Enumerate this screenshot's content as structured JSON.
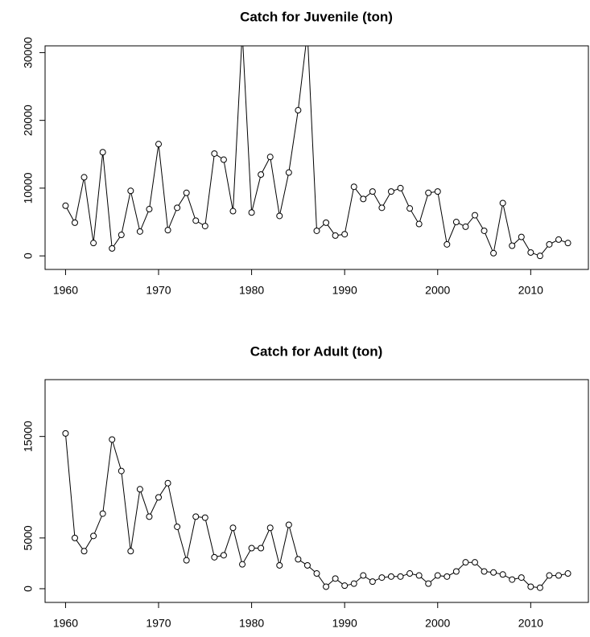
{
  "chart_data": [
    {
      "type": "line",
      "title": "Catch for Juvenile (ton)",
      "color": "#000000",
      "x": [
        1960,
        1961,
        1962,
        1963,
        1964,
        1965,
        1966,
        1967,
        1968,
        1969,
        1970,
        1971,
        1972,
        1973,
        1974,
        1975,
        1976,
        1977,
        1978,
        1979,
        1980,
        1981,
        1982,
        1983,
        1984,
        1985,
        1986,
        1987,
        1988,
        1989,
        1990,
        1991,
        1992,
        1993,
        1994,
        1995,
        1996,
        1997,
        1998,
        1999,
        2000,
        2001,
        2002,
        2003,
        2004,
        2005,
        2006,
        2007,
        2008,
        2009,
        2010,
        2011,
        2012,
        2013,
        2014
      ],
      "values": [
        7400,
        4900,
        11600,
        1900,
        15300,
        1100,
        3100,
        9600,
        3600,
        6900,
        16500,
        3800,
        7100,
        9300,
        5200,
        4400,
        15100,
        14200,
        6600,
        33000,
        6400,
        12000,
        14600,
        5900,
        12300,
        21500,
        33000,
        3700,
        4900,
        3000,
        3200,
        10200,
        8400,
        9500,
        7100,
        9500,
        10000,
        7000,
        4700,
        9300,
        9500,
        1700,
        5000,
        4300,
        6000,
        3700,
        400,
        7800,
        1500,
        2800,
        500,
        0,
        1700,
        2400,
        1900
      ],
      "xlim": [
        1957.8,
        2016.2
      ],
      "ylim": [
        -2000,
        31000
      ],
      "xticks": [
        1960,
        1970,
        1980,
        1990,
        2000,
        2010
      ],
      "yticks": [
        0,
        10000,
        20000,
        30000
      ]
    },
    {
      "type": "line",
      "title": "Catch for Adult (ton)",
      "color": "#000000",
      "x": [
        1960,
        1961,
        1962,
        1963,
        1964,
        1965,
        1966,
        1967,
        1968,
        1969,
        1970,
        1971,
        1972,
        1973,
        1974,
        1975,
        1976,
        1977,
        1978,
        1979,
        1980,
        1981,
        1982,
        1983,
        1984,
        1985,
        1986,
        1987,
        1988,
        1989,
        1990,
        1991,
        1992,
        1993,
        1994,
        1995,
        1996,
        1997,
        1998,
        1999,
        2000,
        2001,
        2002,
        2003,
        2004,
        2005,
        2006,
        2007,
        2008,
        2009,
        2010,
        2011,
        2012,
        2013,
        2014
      ],
      "values": [
        15300,
        5000,
        3700,
        5200,
        7400,
        14700,
        11600,
        3700,
        9800,
        7100,
        9000,
        10400,
        6100,
        2800,
        7100,
        7000,
        3100,
        3300,
        6000,
        2400,
        4000,
        4000,
        6000,
        2300,
        6300,
        2900,
        2300,
        1500,
        200,
        1000,
        300,
        500,
        1300,
        700,
        1100,
        1200,
        1200,
        1500,
        1300,
        500,
        1300,
        1200,
        1700,
        2600,
        2600,
        1700,
        1600,
        1400,
        900,
        1100,
        200,
        100,
        1300,
        1300,
        1500
      ],
      "xlim": [
        1957.8,
        2016.2
      ],
      "ylim": [
        -1350,
        20600
      ],
      "xticks": [
        1960,
        1970,
        1980,
        1990,
        2000,
        2010
      ],
      "yticks": [
        0,
        5000,
        15000
      ]
    }
  ]
}
